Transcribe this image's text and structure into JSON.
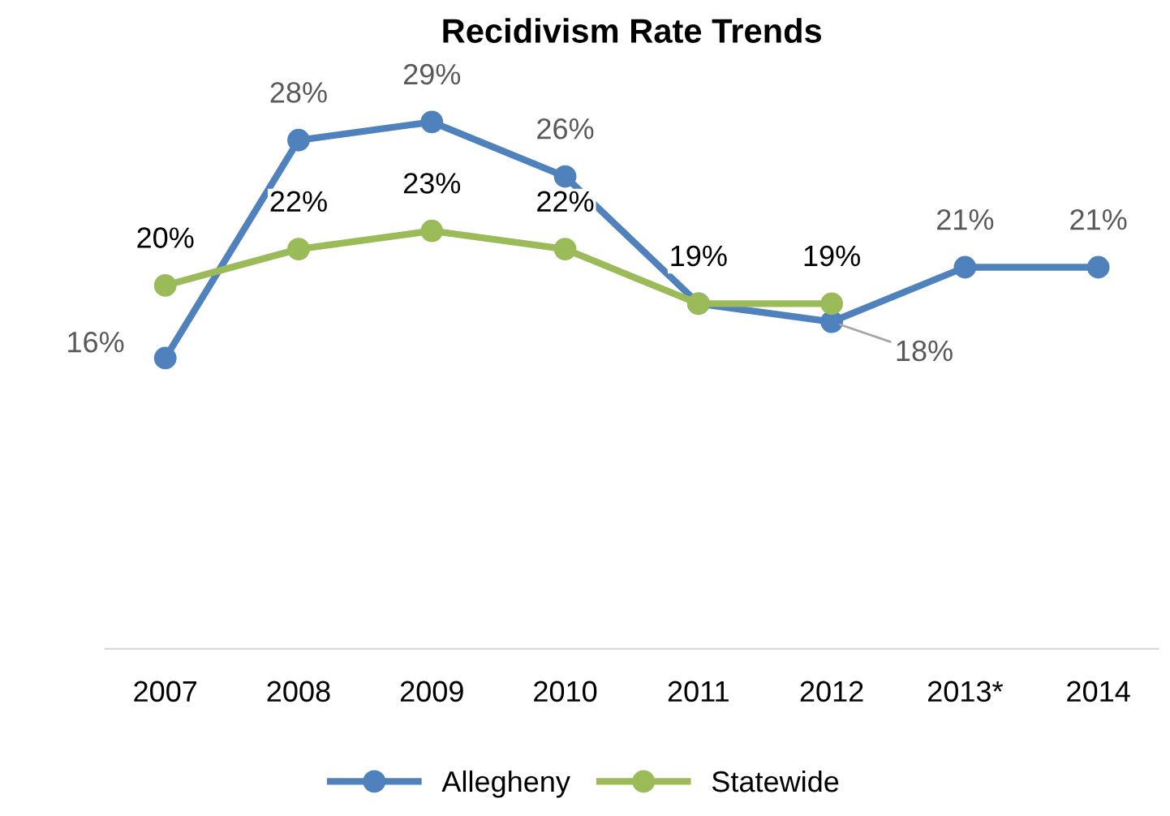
{
  "chart_data": {
    "type": "line",
    "title": "Recidivism Rate Trends",
    "categories": [
      "2007",
      "2008",
      "2009",
      "2010",
      "2011",
      "2012",
      "2013*",
      "2014"
    ],
    "series": [
      {
        "name": "Allegheny",
        "color": "#4f81bd",
        "values": [
          16,
          28,
          29,
          26,
          19,
          18,
          21,
          21
        ],
        "value_labels": [
          "16%",
          "28%",
          "29%",
          "26%",
          null,
          "18%",
          "21%",
          "21%"
        ]
      },
      {
        "name": "Statewide",
        "color": "#9bbb59",
        "values": [
          20,
          22,
          23,
          22,
          19,
          19,
          null,
          null
        ],
        "value_labels": [
          "20%",
          "22%",
          "23%",
          "22%",
          "19%",
          "19%",
          null,
          null
        ]
      }
    ],
    "tick_labels": "x",
    "marker": "circle",
    "line_style": "solid",
    "grid": false,
    "legend": "bottom"
  }
}
